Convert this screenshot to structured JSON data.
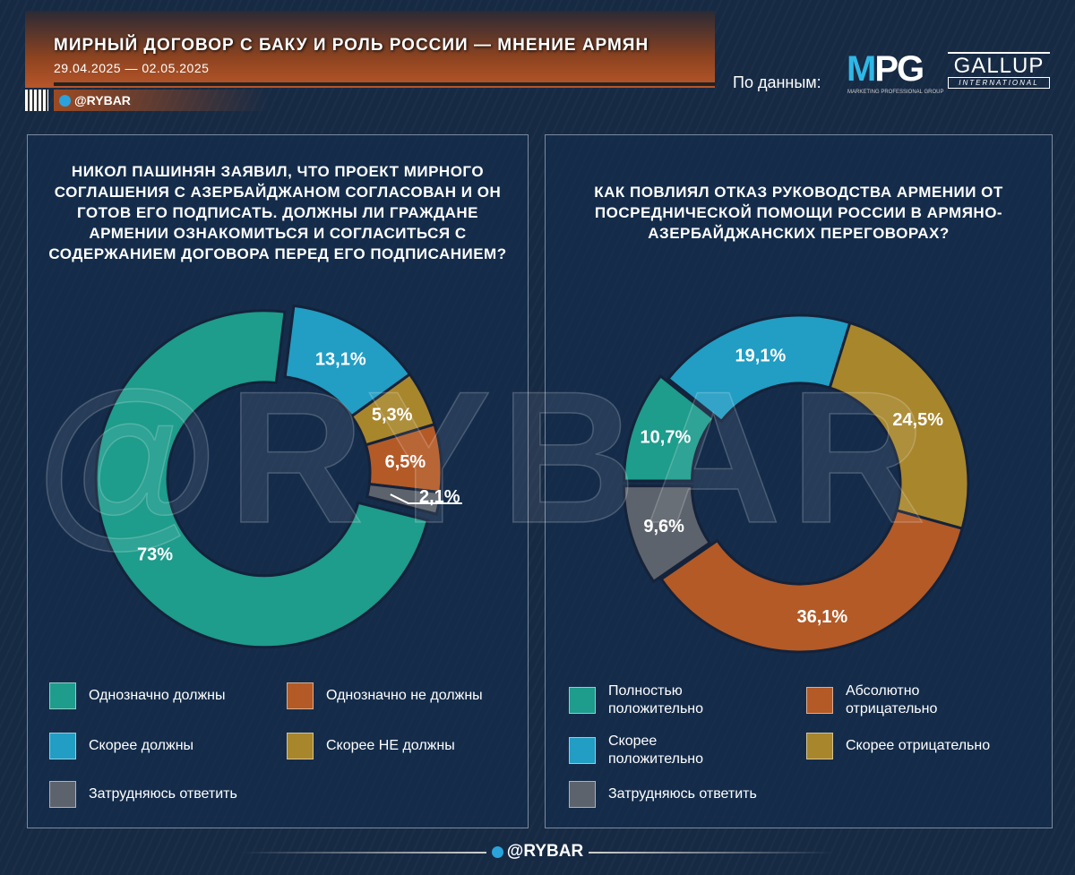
{
  "header": {
    "title": "МИРНЫЙ ДОГОВОР С БАКУ И РОЛЬ РОССИИ — МНЕНИЕ АРМЯН",
    "dates": "29.04.2025 — 02.05.2025",
    "handle": "@RYBAR",
    "source_label": "По данным:",
    "logo_mpg": "MPG",
    "logo_mpg_sub": "MARKETING PROFESSIONAL GROUP",
    "logo_gallup": "GALLUP",
    "logo_gallup_sub": "INTERNATIONAL"
  },
  "watermark": "@RYBAR",
  "footer": {
    "handle": "@RYBAR"
  },
  "chart_data": [
    {
      "type": "pie",
      "donut": true,
      "title": "НИКОЛ ПАШИНЯН ЗАЯВИЛ, ЧТО ПРОЕКТ МИРНОГО СОГЛАШЕНИЯ С АЗЕРБАЙДЖАНОМ СОГЛАСОВАН И ОН ГОТОВ ЕГО ПОДПИСАТЬ. ДОЛЖНЫ ЛИ ГРАЖДАНЕ АРМЕНИИ ОЗНАКОМИТЬСЯ И СОГЛАСИТЬСЯ С СОДЕРЖАНИЕМ ДОГОВОРА ПЕРЕД ЕГО ПОДПИСАНИЕМ?",
      "slices": [
        {
          "name": "Скорее должны",
          "value": 13.1,
          "label": "13,1%",
          "color": "#229dc4"
        },
        {
          "name": "Скорее НЕ должны",
          "value": 5.3,
          "label": "5,3%",
          "color": "#a8862c"
        },
        {
          "name": "Однозначно не должны",
          "value": 6.5,
          "label": "6,5%",
          "color": "#b35a27"
        },
        {
          "name": "Затрудняюсь ответить",
          "value": 2.1,
          "label": "2,1%",
          "color": "#5d636c"
        },
        {
          "name": "Однозначно должны",
          "value": 73,
          "label": "73%",
          "color": "#1e9c8c"
        }
      ],
      "legend": [
        "Однозначно должны",
        "Однозначно не должны",
        "Скорее должны",
        "Скорее НЕ должны",
        "Затрудняюсь ответить"
      ],
      "legend_colors": [
        "#1e9c8c",
        "#b35a27",
        "#229dc4",
        "#a8862c",
        "#5d636c"
      ]
    },
    {
      "type": "pie",
      "donut": true,
      "title": "КАК ПОВЛИЯЛ ОТКАЗ РУКОВОДСТВА АРМЕНИИ ОТ ПОСРЕДНИЧЕСКОЙ ПОМОЩИ РОССИИ В АРМЯНО-АЗЕРБАЙДЖАНСКИХ ПЕРЕГОВОРАХ?",
      "slices": [
        {
          "name": "Полностью положительно",
          "value": 10.7,
          "label": "10,7%",
          "color": "#1e9c8c"
        },
        {
          "name": "Скорее положительно",
          "value": 19.1,
          "label": "19,1%",
          "color": "#229dc4"
        },
        {
          "name": "Скорее отрицательно",
          "value": 24.5,
          "label": "24,5%",
          "color": "#a8862c"
        },
        {
          "name": "Абсолютно отрицательно",
          "value": 36.1,
          "label": "36,1%",
          "color": "#b35a27"
        },
        {
          "name": "Затрудняюсь ответить",
          "value": 9.6,
          "label": "9,6%",
          "color": "#5d636c"
        }
      ],
      "legend": [
        "Полностью положительно",
        "Абсолютно отрицательно",
        "Скорее положительно",
        "Скорее отрицательно",
        "Затрудняюсь ответить"
      ],
      "legend_colors": [
        "#1e9c8c",
        "#b35a27",
        "#229dc4",
        "#a8862c",
        "#5d636c"
      ]
    }
  ]
}
